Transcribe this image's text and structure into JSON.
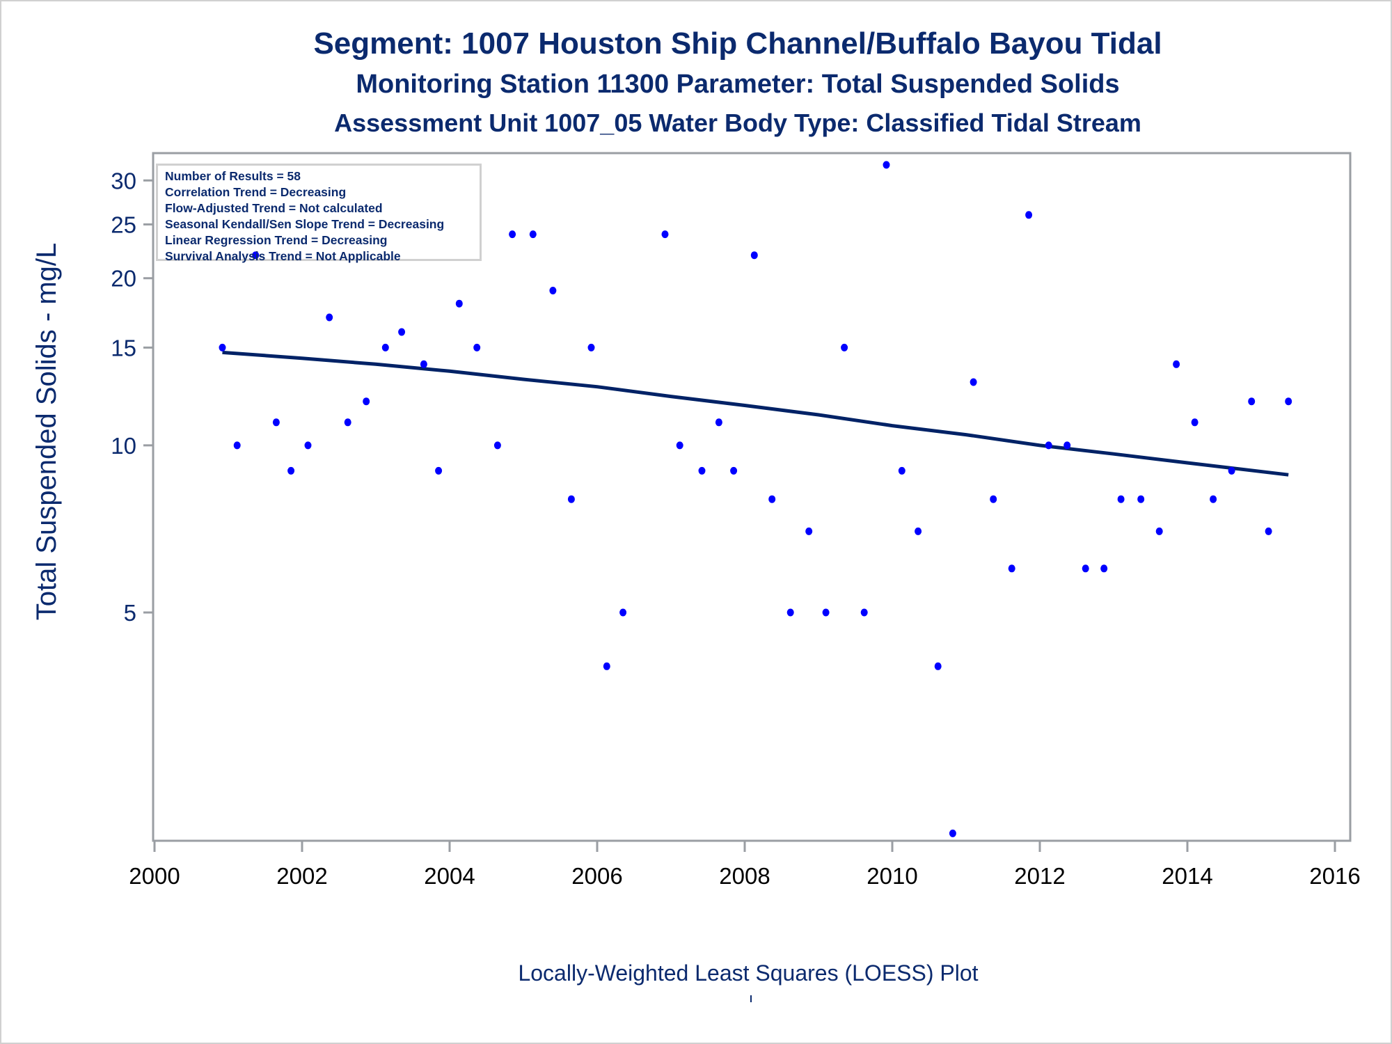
{
  "titles": {
    "line1": "Segment: 1007  Houston Ship Channel/Buffalo Bayou Tidal",
    "line2": "Monitoring Station 11300 Parameter: Total Suspended Solids",
    "line3": "Assessment Unit 1007_05   Water Body Type: Classified Tidal Stream"
  },
  "stats_box": [
    "Number of Results = 58",
    "Correlation Trend = Decreasing",
    "Flow-Adjusted Trend = Not calculated",
    "Seasonal Kendall/Sen Slope Trend = Decreasing",
    "Linear Regression Trend = Decreasing",
    "Survival Analysis Trend = Not Applicable"
  ],
  "footnote": "Locally-Weighted Least Squares (LOESS) Plot",
  "colors": {
    "points": "#0000ff",
    "trend_line": "#002266",
    "text": "#0b2a6e",
    "axis": "#9a9ea3"
  },
  "chart_data": {
    "type": "scatter",
    "title": "Segment: 1007  Houston Ship Channel/Buffalo Bayou Tidal",
    "subtitle": "Monitoring Station 11300 Parameter: Total Suspended Solids / Assessment Unit 1007_05   Water Body Type: Classified Tidal Stream",
    "xlabel": "",
    "ylabel": "Total Suspended Solids - mg/L",
    "yscale": "log",
    "xlim": [
      2000,
      2016
    ],
    "ylim": [
      1.94,
      33.6
    ],
    "xticks": [
      "2000",
      "2002",
      "2004",
      "2006",
      "2008",
      "2010",
      "2012",
      "2014",
      "2016"
    ],
    "yticks": [
      "5",
      "10",
      "15",
      "20",
      "25",
      "30"
    ],
    "grid": false,
    "series": [
      {
        "name": "Results",
        "kind": "points",
        "points": [
          [
            2000.92,
            15
          ],
          [
            2001.12,
            10
          ],
          [
            2001.37,
            22
          ],
          [
            2001.65,
            11
          ],
          [
            2001.85,
            9
          ],
          [
            2002.08,
            10
          ],
          [
            2002.37,
            17
          ],
          [
            2002.62,
            11
          ],
          [
            2002.87,
            12
          ],
          [
            2003.13,
            15
          ],
          [
            2003.35,
            16
          ],
          [
            2003.65,
            14
          ],
          [
            2003.85,
            9
          ],
          [
            2004.13,
            18
          ],
          [
            2004.37,
            15
          ],
          [
            2004.65,
            10
          ],
          [
            2004.85,
            24
          ],
          [
            2005.13,
            24
          ],
          [
            2005.4,
            19
          ],
          [
            2005.65,
            8
          ],
          [
            2005.92,
            15
          ],
          [
            2006.13,
            4
          ],
          [
            2006.35,
            5
          ],
          [
            2006.92,
            24
          ],
          [
            2007.12,
            10
          ],
          [
            2007.42,
            9
          ],
          [
            2007.65,
            11
          ],
          [
            2007.85,
            9
          ],
          [
            2008.13,
            22
          ],
          [
            2008.37,
            8
          ],
          [
            2008.62,
            5
          ],
          [
            2008.87,
            7
          ],
          [
            2009.1,
            5
          ],
          [
            2009.35,
            15
          ],
          [
            2009.62,
            5
          ],
          [
            2009.92,
            32
          ],
          [
            2010.13,
            9
          ],
          [
            2010.35,
            7
          ],
          [
            2010.62,
            4
          ],
          [
            2010.82,
            2
          ],
          [
            2011.1,
            13
          ],
          [
            2011.37,
            8
          ],
          [
            2011.62,
            6
          ],
          [
            2011.85,
            26
          ],
          [
            2012.12,
            10
          ],
          [
            2012.37,
            10
          ],
          [
            2012.62,
            6
          ],
          [
            2012.87,
            6
          ],
          [
            2013.1,
            8
          ],
          [
            2013.37,
            8
          ],
          [
            2013.62,
            7
          ],
          [
            2013.85,
            14
          ],
          [
            2014.1,
            11
          ],
          [
            2014.35,
            8
          ],
          [
            2014.6,
            9
          ],
          [
            2014.87,
            12
          ],
          [
            2015.1,
            7
          ],
          [
            2015.37,
            12
          ]
        ]
      },
      {
        "name": "LOESS trend",
        "kind": "line",
        "points": [
          [
            2000.92,
            14.7
          ],
          [
            2002.0,
            14.35
          ],
          [
            2003.0,
            14.0
          ],
          [
            2004.0,
            13.6
          ],
          [
            2005.0,
            13.15
          ],
          [
            2006.0,
            12.75
          ],
          [
            2007.0,
            12.25
          ],
          [
            2008.0,
            11.8
          ],
          [
            2009.0,
            11.35
          ],
          [
            2010.0,
            10.85
          ],
          [
            2011.0,
            10.45
          ],
          [
            2012.0,
            10.0
          ],
          [
            2013.0,
            9.65
          ],
          [
            2014.0,
            9.3
          ],
          [
            2015.37,
            8.85
          ]
        ]
      }
    ]
  }
}
